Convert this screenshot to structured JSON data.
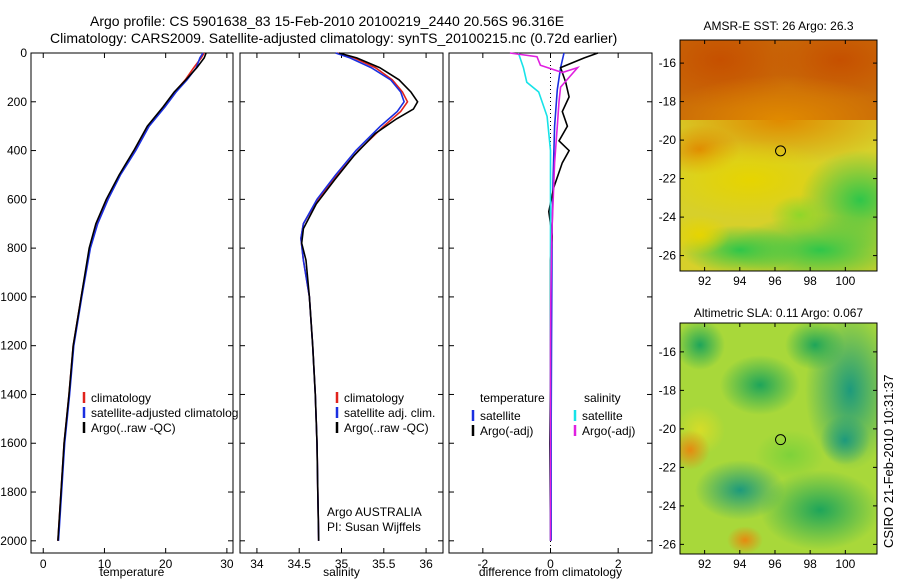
{
  "title_line1": "Argo profile: CS 5901638_83 15-Feb-2010 20100219_2440 20.56S 96.316E",
  "title_line2": "Climatology: CARS2009. Satellite-adjusted climatology: synTS_20100215.nc (0.72d earlier)",
  "credit": "CSIRO 21-Feb-2010 10:31:37",
  "chart_data": [
    {
      "id": "temperature",
      "type": "line",
      "xlabel": "temperature",
      "xlim": [
        -2,
        31
      ],
      "ylim": [
        0,
        2050
      ],
      "xticks": [
        "0",
        "10",
        "20",
        "30"
      ],
      "yticks": [
        "0",
        "200",
        "400",
        "600",
        "800",
        "1000",
        "1200",
        "1400",
        "1600",
        "1800",
        "2000"
      ],
      "legend": [
        "climatology",
        "satellite-adjusted climatolog",
        "Argo(..raw -QC)"
      ],
      "series": [
        {
          "name": "climatology",
          "color": "#e0231c",
          "points": [
            [
              26.3,
              0
            ],
            [
              25.8,
              20
            ],
            [
              24.6,
              60
            ],
            [
              23.2,
              110
            ],
            [
              21.5,
              160
            ],
            [
              19.8,
              220
            ],
            [
              17.2,
              300
            ],
            [
              15.0,
              400
            ],
            [
              12.5,
              500
            ],
            [
              10.5,
              600
            ],
            [
              8.8,
              700
            ],
            [
              7.6,
              800
            ],
            [
              6.2,
              1000
            ],
            [
              4.9,
              1200
            ],
            [
              4.2,
              1400
            ],
            [
              3.4,
              1600
            ],
            [
              2.9,
              1800
            ],
            [
              2.4,
              2000
            ]
          ]
        },
        {
          "name": "satellite-adjusted climatolog",
          "color": "#1a2fe0",
          "points": [
            [
              26.1,
              0
            ],
            [
              25.6,
              20
            ],
            [
              25.0,
              60
            ],
            [
              23.5,
              110
            ],
            [
              21.7,
              160
            ],
            [
              19.9,
              220
            ],
            [
              17.3,
              300
            ],
            [
              15.1,
              400
            ],
            [
              12.6,
              500
            ],
            [
              10.6,
              600
            ],
            [
              8.9,
              700
            ],
            [
              7.7,
              800
            ],
            [
              6.3,
              1000
            ],
            [
              5.0,
              1200
            ],
            [
              4.3,
              1400
            ],
            [
              3.5,
              1600
            ],
            [
              3.0,
              1800
            ],
            [
              2.5,
              2000
            ]
          ]
        },
        {
          "name": "Argo(..raw -QC)",
          "color": "#000000",
          "points": [
            [
              26.6,
              0
            ],
            [
              26.3,
              20
            ],
            [
              25.1,
              60
            ],
            [
              23.3,
              110
            ],
            [
              21.4,
              160
            ],
            [
              19.6,
              220
            ],
            [
              17.0,
              300
            ],
            [
              14.8,
              400
            ],
            [
              12.4,
              500
            ],
            [
              10.3,
              600
            ],
            [
              8.6,
              700
            ],
            [
              7.5,
              800
            ],
            [
              6.2,
              1000
            ],
            [
              4.9,
              1200
            ],
            [
              4.2,
              1400
            ],
            [
              3.4,
              1600
            ],
            [
              2.9,
              1800
            ],
            [
              2.4,
              2000
            ]
          ]
        }
      ]
    },
    {
      "id": "salinity",
      "type": "line",
      "xlabel": "salinity",
      "xlim": [
        33.8,
        36.2
      ],
      "ylim": [
        0,
        2050
      ],
      "xticks": [
        "34",
        "34.5",
        "35",
        "35.5",
        "36"
      ],
      "legend": [
        "climatology",
        "satellite adj. clim.",
        "Argo(..raw -QC)"
      ],
      "annotation": [
        "Argo AUSTRALIA",
        "PI: Susan Wijffels"
      ],
      "series": [
        {
          "name": "climatology",
          "color": "#e0231c",
          "points": [
            [
              34.95,
              0
            ],
            [
              35.15,
              20
            ],
            [
              35.4,
              60
            ],
            [
              35.6,
              110
            ],
            [
              35.72,
              160
            ],
            [
              35.78,
              200
            ],
            [
              35.7,
              240
            ],
            [
              35.5,
              300
            ],
            [
              35.2,
              400
            ],
            [
              34.95,
              500
            ],
            [
              34.72,
              600
            ],
            [
              34.55,
              700
            ],
            [
              34.52,
              760
            ],
            [
              34.55,
              850
            ],
            [
              34.62,
              1000
            ],
            [
              34.66,
              1200
            ],
            [
              34.69,
              1400
            ],
            [
              34.71,
              1600
            ],
            [
              34.72,
              1800
            ],
            [
              34.73,
              2000
            ]
          ]
        },
        {
          "name": "satellite adj. clim.",
          "color": "#1a2fe0",
          "points": [
            [
              34.93,
              0
            ],
            [
              35.1,
              20
            ],
            [
              35.35,
              60
            ],
            [
              35.58,
              110
            ],
            [
              35.7,
              160
            ],
            [
              35.74,
              200
            ],
            [
              35.66,
              240
            ],
            [
              35.46,
              300
            ],
            [
              35.17,
              400
            ],
            [
              34.93,
              500
            ],
            [
              34.71,
              600
            ],
            [
              34.55,
              700
            ],
            [
              34.52,
              760
            ],
            [
              34.55,
              850
            ],
            [
              34.62,
              1000
            ],
            [
              34.66,
              1200
            ],
            [
              34.69,
              1400
            ],
            [
              34.71,
              1600
            ],
            [
              34.72,
              1800
            ],
            [
              34.73,
              2000
            ]
          ]
        },
        {
          "name": "Argo(..raw -QC)",
          "color": "#000000",
          "points": [
            [
              34.97,
              0
            ],
            [
              35.18,
              20
            ],
            [
              35.45,
              60
            ],
            [
              35.68,
              110
            ],
            [
              35.82,
              160
            ],
            [
              35.9,
              200
            ],
            [
              35.85,
              230
            ],
            [
              35.65,
              270
            ],
            [
              35.4,
              330
            ],
            [
              35.15,
              420
            ],
            [
              34.92,
              520
            ],
            [
              34.7,
              620
            ],
            [
              34.55,
              720
            ],
            [
              34.53,
              780
            ],
            [
              34.58,
              850
            ],
            [
              34.62,
              1000
            ],
            [
              34.66,
              1200
            ],
            [
              34.69,
              1400
            ],
            [
              34.71,
              1600
            ],
            [
              34.72,
              1800
            ],
            [
              34.73,
              2000
            ]
          ]
        }
      ]
    },
    {
      "id": "difference",
      "type": "line",
      "xlabel": "difference from climatology",
      "xlim": [
        -3,
        3
      ],
      "ylim": [
        0,
        2050
      ],
      "xticks": [
        "-2",
        "0",
        "2"
      ],
      "legend_left_title": "temperature",
      "legend_right_title": "salinity",
      "legend_left": [
        "satellite",
        "Argo(-adj)"
      ],
      "legend_right": [
        "satellite",
        "Argo(-adj)"
      ],
      "series": [
        {
          "name": "temperature satellite",
          "color": "#1a2fe0",
          "points": [
            [
              0.4,
              0
            ],
            [
              0.3,
              60
            ],
            [
              0.2,
              150
            ],
            [
              0.12,
              300
            ],
            [
              0.08,
              500
            ],
            [
              0.05,
              700
            ],
            [
              0.04,
              900
            ],
            [
              0.03,
              1200
            ],
            [
              0.02,
              1500
            ],
            [
              0.02,
              2000
            ]
          ]
        },
        {
          "name": "temperature Argo(-adj)",
          "color": "#000000",
          "points": [
            [
              1.4,
              0
            ],
            [
              1.0,
              20
            ],
            [
              0.3,
              60
            ],
            [
              0.45,
              120
            ],
            [
              0.55,
              180
            ],
            [
              0.35,
              240
            ],
            [
              0.5,
              300
            ],
            [
              0.25,
              360
            ],
            [
              0.55,
              400
            ],
            [
              0.35,
              450
            ],
            [
              0.1,
              550
            ],
            [
              -0.05,
              650
            ],
            [
              0.05,
              750
            ],
            [
              0,
              850
            ],
            [
              0,
              1000
            ],
            [
              0,
              1300
            ],
            [
              -0.02,
              1600
            ],
            [
              0,
              2000
            ]
          ]
        },
        {
          "name": "salinity satellite",
          "color": "#17e3e8",
          "points": [
            [
              -0.95,
              0
            ],
            [
              -0.8,
              60
            ],
            [
              -0.7,
              120
            ],
            [
              -0.35,
              160
            ],
            [
              -0.1,
              260
            ],
            [
              0,
              400
            ],
            [
              0,
              700
            ],
            [
              0,
              900
            ],
            [
              0,
              1300
            ],
            [
              0,
              1700
            ],
            [
              0,
              2000
            ]
          ]
        },
        {
          "name": "salinity Argo(-adj)",
          "color": "#e020e0",
          "points": [
            [
              -1.2,
              0
            ],
            [
              -0.4,
              15
            ],
            [
              -0.3,
              50
            ],
            [
              0.35,
              80
            ],
            [
              0.8,
              60
            ],
            [
              0.3,
              140
            ],
            [
              0.25,
              200
            ],
            [
              0.2,
              300
            ],
            [
              0.12,
              450
            ],
            [
              0.08,
              600
            ],
            [
              0.05,
              700
            ],
            [
              0.03,
              800
            ],
            [
              0.01,
              1000
            ],
            [
              0,
              1200
            ],
            [
              0,
              1600
            ],
            [
              0,
              2000
            ]
          ]
        }
      ]
    },
    {
      "id": "sst_map",
      "type": "heatmap",
      "title": "AMSR-E SST: 26 Argo: 26.3",
      "xticks": [
        "92",
        "94",
        "96",
        "98",
        "100"
      ],
      "yticks": [
        "-16",
        "-18",
        "-20",
        "-22",
        "-24",
        "-26"
      ],
      "xlim": [
        90.6,
        101.8
      ],
      "ylim": [
        -26.8,
        -14.8
      ],
      "marker": {
        "lon": 96.316,
        "lat": -20.56
      }
    },
    {
      "id": "sla_map",
      "type": "heatmap",
      "title": "Altimetric SLA: 0.11 Argo: 0.067",
      "xticks": [
        "92",
        "94",
        "96",
        "98",
        "100"
      ],
      "yticks": [
        "-16",
        "-18",
        "-20",
        "-22",
        "-24",
        "-26"
      ],
      "xlim": [
        90.6,
        101.8
      ],
      "ylim": [
        -26.5,
        -14.5
      ],
      "marker": {
        "lon": 96.316,
        "lat": -20.56
      }
    }
  ]
}
